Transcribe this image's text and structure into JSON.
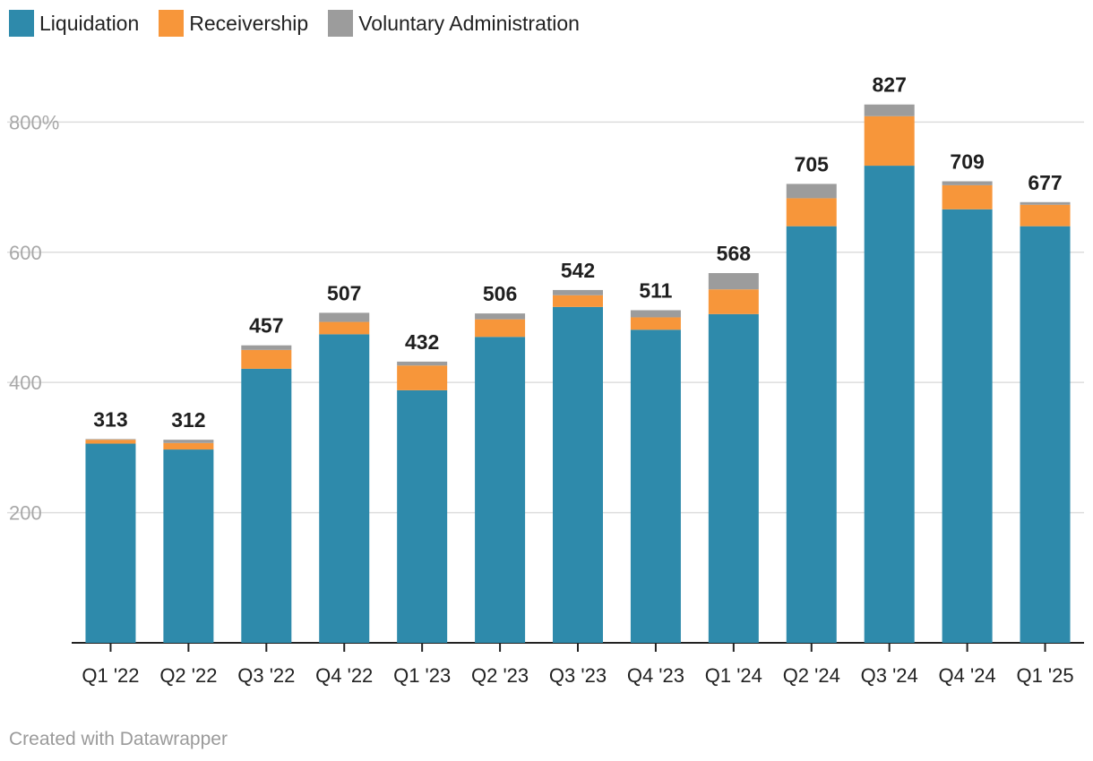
{
  "legend": {
    "items": [
      {
        "label": "Liquidation",
        "color": "#2e8aab"
      },
      {
        "label": "Receivership",
        "color": "#f7963a"
      },
      {
        "label": "Voluntary Administration",
        "color": "#9c9c9c"
      }
    ]
  },
  "footer": {
    "credit": "Created with Datawrapper"
  },
  "chart_data": {
    "type": "bar",
    "stacked": true,
    "title": "",
    "xlabel": "",
    "ylabel": "",
    "ylim": [
      0,
      850
    ],
    "y_ticks": [
      200,
      400,
      600,
      800
    ],
    "y_tick_labels": [
      "200",
      "400",
      "600",
      "800%"
    ],
    "grid": true,
    "legend_position": "top-left",
    "categories": [
      "Q1 '22",
      "Q2 '22",
      "Q3 '22",
      "Q4 '22",
      "Q1 '23",
      "Q2 '23",
      "Q3 '23",
      "Q4 '23",
      "Q1 '24",
      "Q2 '24",
      "Q3 '24",
      "Q4 '24",
      "Q1 '25"
    ],
    "series": [
      {
        "name": "Liquidation",
        "color": "#2e8aab",
        "values": [
          306,
          297,
          421,
          474,
          388,
          470,
          516,
          481,
          505,
          640,
          733,
          666,
          640
        ]
      },
      {
        "name": "Receivership",
        "color": "#f7963a",
        "values": [
          6,
          10,
          29,
          19,
          38,
          27,
          18,
          19,
          38,
          43,
          76,
          37,
          33
        ]
      },
      {
        "name": "Voluntary Administration",
        "color": "#9c9c9c",
        "values": [
          1,
          5,
          7,
          14,
          6,
          9,
          8,
          11,
          25,
          22,
          18,
          6,
          4
        ]
      }
    ],
    "totals": [
      313,
      312,
      457,
      507,
      432,
      506,
      542,
      511,
      568,
      705,
      827,
      709,
      677
    ]
  }
}
